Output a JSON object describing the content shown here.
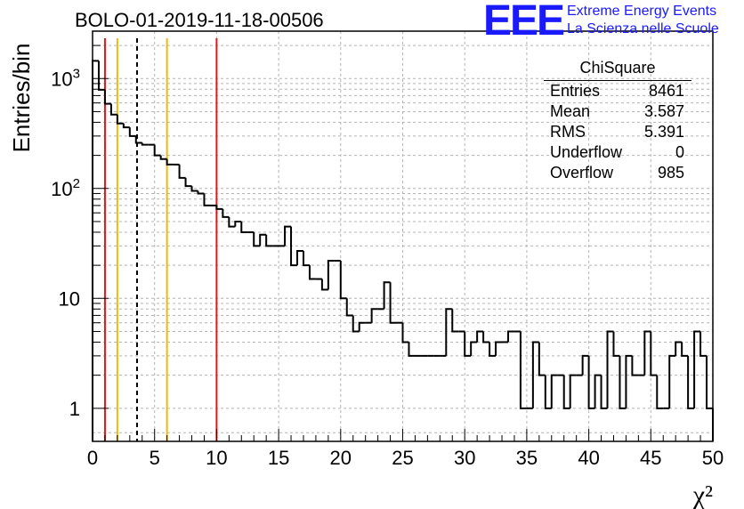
{
  "title": "BOLO-01-2019-11-18-00506",
  "logo": {
    "mark": "EEE",
    "line1": "Extreme Energy Events",
    "line2": "La Scienza nelle Scuole",
    "color": "#1a1aff"
  },
  "stats_box": {
    "title": "ChiSquare",
    "rows": [
      {
        "label": "Entries",
        "value": "8461"
      },
      {
        "label": "Mean",
        "value": "3.587"
      },
      {
        "label": "RMS",
        "value": "5.391"
      },
      {
        "label": "Underflow",
        "value": "0"
      },
      {
        "label": "Overflow",
        "value": "985"
      }
    ]
  },
  "chart_data": {
    "type": "histogram",
    "title": "BOLO-01-2019-11-18-00506",
    "xlabel": "χ²",
    "ylabel": "Entries/bin",
    "xlim": [
      0,
      50
    ],
    "ylim": [
      0.5,
      2700
    ],
    "y_scale": "log",
    "grid": true,
    "bin_width": 0.5,
    "x_ticks": [
      "0",
      "5",
      "10",
      "15",
      "20",
      "25",
      "30",
      "35",
      "40",
      "45",
      "50"
    ],
    "y_ticks": [
      {
        "value": 1,
        "label": "1"
      },
      {
        "value": 10,
        "label": "10"
      },
      {
        "value": 100,
        "label": "10^2"
      },
      {
        "value": 1000,
        "label": "10^3"
      }
    ],
    "counts": [
      1450,
      790,
      590,
      470,
      390,
      360,
      300,
      260,
      250,
      250,
      200,
      185,
      165,
      165,
      125,
      105,
      95,
      90,
      70,
      70,
      65,
      55,
      45,
      50,
      40,
      40,
      30,
      38,
      30,
      30,
      30,
      45,
      20,
      27,
      20,
      15,
      15,
      12,
      22,
      22,
      10,
      7,
      5,
      6,
      6,
      8,
      8,
      14,
      6,
      6,
      4,
      3,
      3,
      3,
      3,
      3,
      3,
      8,
      5,
      5,
      3,
      4,
      5,
      4,
      3,
      4,
      4,
      5,
      5,
      1,
      1,
      4,
      2,
      1,
      2,
      2,
      1,
      2,
      2,
      3,
      1,
      2,
      1,
      5,
      3,
      1,
      3,
      2,
      2,
      5,
      2,
      1,
      1,
      3,
      4,
      3,
      1,
      5,
      3,
      1
    ],
    "vertical_lines": [
      {
        "x": 1.0,
        "color": "#e8141a",
        "style": "solid"
      },
      {
        "x": 2.0,
        "color": "#f2b811",
        "style": "solid"
      },
      {
        "x": 3.587,
        "color": "#000000",
        "style": "dashed"
      },
      {
        "x": 6.0,
        "color": "#f2b811",
        "style": "solid"
      },
      {
        "x": 10.0,
        "color": "#e8141a",
        "style": "solid"
      }
    ]
  }
}
